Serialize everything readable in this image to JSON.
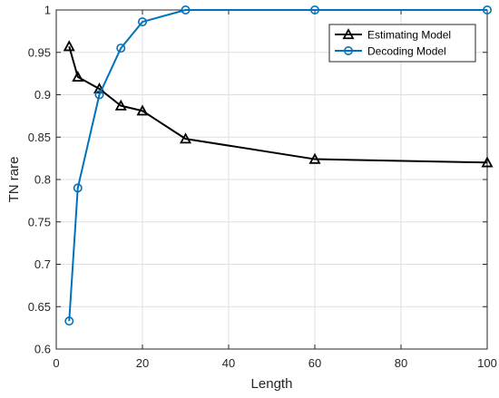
{
  "chart_data": {
    "type": "line",
    "title": "",
    "xlabel": "Length",
    "ylabel": "TN rare",
    "xlim": [
      0,
      100
    ],
    "ylim": [
      0.6,
      1
    ],
    "xticks": [
      0,
      20,
      40,
      60,
      80,
      100
    ],
    "yticks": [
      0.6,
      0.65,
      0.7,
      0.75,
      0.8,
      0.85,
      0.9,
      0.95,
      1
    ],
    "xtick_labels": [
      "0",
      "20",
      "40",
      "60",
      "80",
      "100"
    ],
    "ytick_labels": [
      "0.6",
      "0.65",
      "0.7",
      "0.75",
      "0.8",
      "0.85",
      "0.9",
      "0.95",
      "1"
    ],
    "grid": true,
    "legend_position": "top-right",
    "series": [
      {
        "name": "Estimating Model",
        "color": "#000000",
        "marker": "triangle",
        "x": [
          3,
          5,
          10,
          15,
          20,
          30,
          60,
          100
        ],
        "y": [
          0.957,
          0.921,
          0.907,
          0.887,
          0.881,
          0.848,
          0.824,
          0.82
        ]
      },
      {
        "name": "Decoding Model",
        "color": "#0072BD",
        "marker": "circle",
        "x": [
          3,
          5,
          10,
          15,
          20,
          30,
          60,
          100
        ],
        "y": [
          0.633,
          0.79,
          0.9,
          0.955,
          0.986,
          1.0,
          1.0,
          1.0
        ]
      }
    ]
  }
}
